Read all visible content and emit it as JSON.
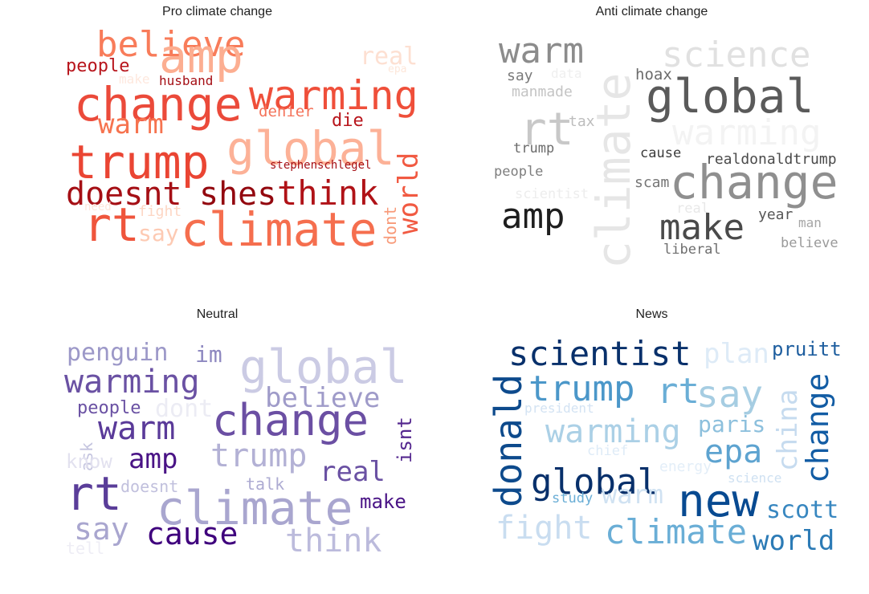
{
  "chart_data": [
    {
      "type": "wordcloud",
      "title": "Pro climate change",
      "colormap": "Reds",
      "words": [
        {
          "text": "believe",
          "color": "#f87c5a"
        },
        {
          "text": "amp",
          "color": "#fcae91"
        },
        {
          "text": "real",
          "color": "#fde0d2"
        },
        {
          "text": "people",
          "color": "#b8151c"
        },
        {
          "text": "epa",
          "color": "#fde7da"
        },
        {
          "text": "make",
          "color": "#fee8de"
        },
        {
          "text": "husband",
          "color": "#a50f15"
        },
        {
          "text": "change",
          "color": "#eb4a3a"
        },
        {
          "text": "warming",
          "color": "#ef4f3a"
        },
        {
          "text": "warm",
          "color": "#f6734f"
        },
        {
          "text": "denier",
          "color": "#f4735a"
        },
        {
          "text": "die",
          "color": "#b8151c"
        },
        {
          "text": "trump",
          "color": "#ea4533"
        },
        {
          "text": "global",
          "color": "#fcb197"
        },
        {
          "text": "stephenschlegel",
          "color": "#a50f15"
        },
        {
          "text": "doesnt",
          "color": "#a50f15"
        },
        {
          "text": "shes",
          "color": "#93080f"
        },
        {
          "text": "think",
          "color": "#b01217"
        },
        {
          "text": "world",
          "color": "#f15a42"
        },
        {
          "text": "need",
          "color": "#fee6dc"
        },
        {
          "text": "fight",
          "color": "#fdd6c4"
        },
        {
          "text": "rt",
          "color": "#ef553c"
        },
        {
          "text": "say",
          "color": "#fdcab3"
        },
        {
          "text": "climate",
          "color": "#f56e4e"
        },
        {
          "text": "dont",
          "color": "#f89a79"
        }
      ]
    },
    {
      "type": "wordcloud",
      "title": "Anti climate change",
      "colormap": "Greys",
      "words": [
        {
          "text": "warm",
          "color": "#8c8c8c"
        },
        {
          "text": "climate",
          "color": "#e6e6e6"
        },
        {
          "text": "science",
          "color": "#e1e1e1"
        },
        {
          "text": "say",
          "color": "#7a7a7a"
        },
        {
          "text": "data",
          "color": "#efefef"
        },
        {
          "text": "hoax",
          "color": "#6b6b6b"
        },
        {
          "text": "manmade",
          "color": "#c4c4c4"
        },
        {
          "text": "global",
          "color": "#5a5a5a"
        },
        {
          "text": "rt",
          "color": "#c8c8c8"
        },
        {
          "text": "tax",
          "color": "#bdbdbd"
        },
        {
          "text": "warming",
          "color": "#f3f3f3"
        },
        {
          "text": "trump",
          "color": "#6b6b6b"
        },
        {
          "text": "cause",
          "color": "#3c3c3c"
        },
        {
          "text": "realdonaldtrump",
          "color": "#4a4a4a"
        },
        {
          "text": "people",
          "color": "#7e7e7e"
        },
        {
          "text": "change",
          "color": "#8f8f8f"
        },
        {
          "text": "scientist",
          "color": "#ededed"
        },
        {
          "text": "scam",
          "color": "#767676"
        },
        {
          "text": "amp",
          "color": "#1e1e1e"
        },
        {
          "text": "real",
          "color": "#e8e8e8"
        },
        {
          "text": "make",
          "color": "#4a4a4a"
        },
        {
          "text": "year",
          "color": "#565656"
        },
        {
          "text": "man",
          "color": "#a6a6a6"
        },
        {
          "text": "liberal",
          "color": "#6e6e6e"
        },
        {
          "text": "believe",
          "color": "#9a9a9a"
        }
      ]
    },
    {
      "type": "wordcloud",
      "title": "Neutral",
      "colormap": "Purples",
      "words": [
        {
          "text": "penguin",
          "color": "#9c98c8"
        },
        {
          "text": "im",
          "color": "#8e88c0"
        },
        {
          "text": "global",
          "color": "#cbcbe4"
        },
        {
          "text": "warming",
          "color": "#6a51a3"
        },
        {
          "text": "believe",
          "color": "#9f9bc9"
        },
        {
          "text": "people",
          "color": "#6a51a3"
        },
        {
          "text": "dont",
          "color": "#ececf4"
        },
        {
          "text": "ask",
          "color": "#c4c4df"
        },
        {
          "text": "warm",
          "color": "#5a3a99"
        },
        {
          "text": "change",
          "color": "#6b4fa3"
        },
        {
          "text": "isnt",
          "color": "#54278f"
        },
        {
          "text": "know",
          "color": "#e2e1ef"
        },
        {
          "text": "amp",
          "color": "#4a1486"
        },
        {
          "text": "trump",
          "color": "#b3b1d5"
        },
        {
          "text": "real",
          "color": "#6a51a3"
        },
        {
          "text": "rt",
          "color": "#5a3d99"
        },
        {
          "text": "doesnt",
          "color": "#c1c0dd"
        },
        {
          "text": "climate",
          "color": "#a9a6cf"
        },
        {
          "text": "talk",
          "color": "#adabd2"
        },
        {
          "text": "make",
          "color": "#4a1486"
        },
        {
          "text": "say",
          "color": "#a9a6cf"
        },
        {
          "text": "cause",
          "color": "#3f007d"
        },
        {
          "text": "think",
          "color": "#bcbbdc"
        },
        {
          "text": "tell",
          "color": "#eeedf5"
        }
      ]
    },
    {
      "type": "wordcloud",
      "title": "News",
      "colormap": "Blues",
      "words": [
        {
          "text": "scientist",
          "color": "#08306b"
        },
        {
          "text": "plan",
          "color": "#deebf7"
        },
        {
          "text": "pruitt",
          "color": "#1e5e9f"
        },
        {
          "text": "donald",
          "color": "#0d4a8c"
        },
        {
          "text": "trump",
          "color": "#4b97c9"
        },
        {
          "text": "rt",
          "color": "#6aaed6"
        },
        {
          "text": "say",
          "color": "#a6cde2"
        },
        {
          "text": "china",
          "color": "#c6dbef"
        },
        {
          "text": "change",
          "color": "#125ca4"
        },
        {
          "text": "president",
          "color": "#d3e3f3"
        },
        {
          "text": "warming",
          "color": "#abd0e6"
        },
        {
          "text": "paris",
          "color": "#8dc0dd"
        },
        {
          "text": "epa",
          "color": "#5da3d0"
        },
        {
          "text": "chief",
          "color": "#deebf7"
        },
        {
          "text": "global",
          "color": "#08306b"
        },
        {
          "text": "energy",
          "color": "#e3eef8"
        },
        {
          "text": "science",
          "color": "#cfe1f2"
        },
        {
          "text": "warm",
          "color": "#d0e2f2"
        },
        {
          "text": "study",
          "color": "#6aaed6"
        },
        {
          "text": "new",
          "color": "#084a91"
        },
        {
          "text": "scott",
          "color": "#3887c0"
        },
        {
          "text": "fight",
          "color": "#c9ddf0"
        },
        {
          "text": "climate",
          "color": "#6aaed6"
        },
        {
          "text": "world",
          "color": "#2c7bb6"
        }
      ]
    }
  ]
}
